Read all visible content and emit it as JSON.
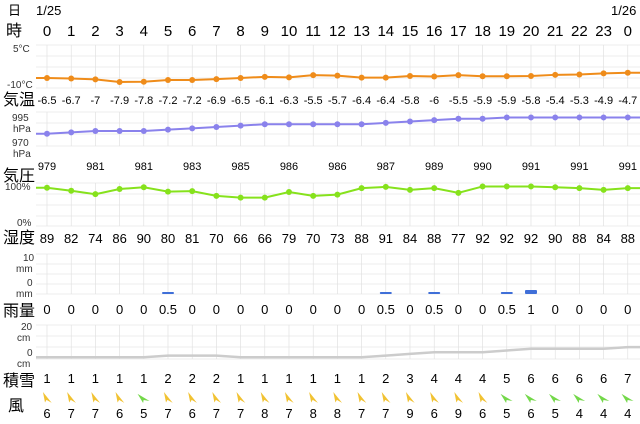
{
  "header": {
    "day_label": "日",
    "date_start": "1/25",
    "date_end": "1/26",
    "hour_label": "時"
  },
  "rows": {
    "temp_label": "気温",
    "precip_label": "雨量",
    "pressure_label": "気圧",
    "humidity_label": "湿度",
    "snow_label": "積雪",
    "wind_label": "風"
  },
  "axes": {
    "temp_top": "5°C",
    "temp_bottom": "-10°C",
    "pressure_top": "995",
    "pressure_top_unit": "hPa",
    "pressure_bottom": "970",
    "pressure_bottom_unit": "hPa",
    "humidity_top": "100%",
    "humidity_bottom": "0%",
    "precip_top": "10",
    "precip_top_unit": "mm",
    "precip_bottom": "0",
    "precip_bottom_unit": "mm",
    "snow_top": "20",
    "snow_top_unit": "cm",
    "snow_bottom": "0",
    "snow_bottom_unit": "cm"
  },
  "colors": {
    "temperature": "#ef8c1a",
    "pressure": "#8a82ec",
    "humidity": "#86e21c",
    "precipitation": "#3f6fd8",
    "snow": "#cccccc",
    "wind_ne": "#f1c232",
    "wind_n": "#74d84a",
    "grid": "#dddddd"
  },
  "chart_data": {
    "type": "line",
    "hours": [
      "0",
      "1",
      "2",
      "3",
      "4",
      "5",
      "6",
      "7",
      "8",
      "9",
      "10",
      "11",
      "12",
      "13",
      "14",
      "15",
      "16",
      "17",
      "18",
      "19",
      "20",
      "21",
      "22",
      "23",
      "0"
    ],
    "temperature": {
      "ylim": [
        -10,
        5
      ],
      "values": [
        -6.5,
        -6.7,
        -7,
        -7.9,
        -7.8,
        -7.2,
        -7.2,
        -6.9,
        -6.5,
        -6.1,
        -6.3,
        -5.5,
        -5.7,
        -6.4,
        -6.4,
        -5.8,
        -6,
        -5.5,
        -5.9,
        -5.9,
        -5.8,
        -5.4,
        -5.3,
        -4.9,
        -4.7
      ],
      "labels": [
        "-6.5",
        "-6.7",
        "-7",
        "-7.9",
        "-7.8",
        "-7.2",
        "-7.2",
        "-6.9",
        "-6.5",
        "-6.1",
        "-6.3",
        "-5.5",
        "-5.7",
        "-6.4",
        "-6.4",
        "-5.8",
        "-6",
        "-5.5",
        "-5.9",
        "-5.9",
        "-5.8",
        "-5.4",
        "-5.3",
        "-4.9",
        "-4.7"
      ]
    },
    "pressure": {
      "ylim": [
        970,
        995
      ],
      "values": [
        979,
        980,
        981,
        981,
        981,
        982,
        983,
        984,
        985,
        986,
        986,
        986,
        986,
        986,
        987,
        988,
        989,
        990,
        990,
        991,
        991,
        991,
        991,
        991,
        991
      ],
      "labels": [
        "979",
        "",
        "981",
        "",
        "981",
        "",
        "983",
        "",
        "985",
        "",
        "986",
        "",
        "986",
        "",
        "987",
        "",
        "989",
        "",
        "990",
        "",
        "991",
        "",
        "991",
        "",
        "991"
      ]
    },
    "humidity": {
      "ylim": [
        0,
        100
      ],
      "values": [
        89,
        82,
        74,
        86,
        90,
        80,
        81,
        70,
        66,
        66,
        79,
        70,
        73,
        88,
        91,
        84,
        88,
        77,
        92,
        92,
        92,
        90,
        88,
        84,
        88
      ],
      "labels": [
        "89",
        "82",
        "74",
        "86",
        "90",
        "80",
        "81",
        "70",
        "66",
        "66",
        "79",
        "70",
        "73",
        "88",
        "91",
        "84",
        "88",
        "77",
        "92",
        "92",
        "92",
        "90",
        "88",
        "84",
        "88"
      ]
    },
    "precipitation": {
      "ylim": [
        0,
        10
      ],
      "values": [
        0,
        0,
        0,
        0,
        0,
        0.5,
        0,
        0,
        0,
        0,
        0,
        0,
        0,
        0,
        0.5,
        0,
        0.5,
        0,
        0,
        0.5,
        1,
        0,
        0,
        0,
        0
      ],
      "labels": [
        "0",
        "0",
        "0",
        "0",
        "0",
        "0.5",
        "0",
        "0",
        "0",
        "0",
        "0",
        "0",
        "0",
        "0",
        "0.5",
        "0",
        "0.5",
        "0",
        "0",
        "0.5",
        "1",
        "0",
        "0",
        "0",
        "0"
      ]
    },
    "snow": {
      "ylim": [
        0,
        20
      ],
      "values": [
        1,
        1,
        1,
        1,
        1,
        2,
        2,
        2,
        1,
        1,
        1,
        1,
        1,
        1,
        2,
        3,
        4,
        4,
        4,
        5,
        6,
        6,
        6,
        6,
        7
      ],
      "labels": [
        "1",
        "1",
        "1",
        "1",
        "1",
        "2",
        "2",
        "2",
        "1",
        "1",
        "1",
        "1",
        "1",
        "1",
        "2",
        "3",
        "4",
        "4",
        "4",
        "5",
        "6",
        "6",
        "6",
        "6",
        "7"
      ]
    },
    "wind": {
      "direction": [
        "ne",
        "ne",
        "ne",
        "ne",
        "n",
        "ne",
        "ne",
        "ne",
        "ne",
        "ne",
        "ne",
        "ne",
        "ne",
        "ne",
        "ne",
        "ne",
        "ne",
        "ne",
        "ne",
        "n",
        "n",
        "n",
        "n",
        "n",
        "n"
      ],
      "speed": [
        "6",
        "7",
        "7",
        "6",
        "5",
        "7",
        "6",
        "7",
        "7",
        "8",
        "7",
        "8",
        "8",
        "7",
        "7",
        "9",
        "6",
        "9",
        "6",
        "5",
        "6",
        "5",
        "4",
        "4",
        "4"
      ]
    }
  }
}
